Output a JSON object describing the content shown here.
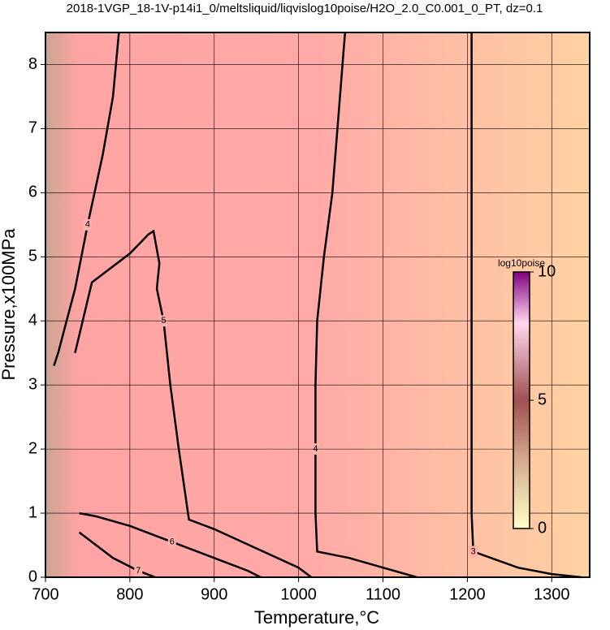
{
  "chart_data": {
    "type": "contour",
    "title": "2018-1VGP_18-1V-p14i1_0/meltsliquid/liqvislog10poise/H2O_2.0_C0.001_0_PT, dz=0.1",
    "x_label": "Temperature,°C",
    "y_label": "Pressure,x100MPa",
    "xlim": [
      700,
      1345
    ],
    "ylim": [
      0,
      8.5
    ],
    "xticks": [
      700,
      800,
      900,
      1000,
      1100,
      1200,
      1300
    ],
    "yticks": [
      0,
      1,
      2,
      3,
      4,
      5,
      6,
      7,
      8
    ],
    "grid": true,
    "colorbar": {
      "label": "log10poise",
      "lim": [
        0,
        10
      ],
      "ticks": [
        0,
        5,
        10
      ]
    },
    "contours": [
      {
        "level": 3,
        "x": [
          1205,
          1205,
          1205,
          1205,
          1207,
          1260,
          1300,
          1335
        ],
        "y": [
          8.5,
          6,
          3,
          1,
          0.4,
          0.15,
          0.05,
          0
        ]
      },
      {
        "level": 4,
        "x": [
          1055,
          1040,
          1030,
          1022,
          1020,
          1020,
          1020,
          1022,
          1060,
          1100,
          1140
        ],
        "y": [
          8.5,
          6,
          5,
          4,
          3,
          2,
          1,
          0.4,
          0.3,
          0.15,
          0
        ]
      },
      {
        "level": 4,
        "x": [
          787,
          780,
          768,
          750,
          735,
          715,
          710
        ],
        "y": [
          8.5,
          7.5,
          6.6,
          5.5,
          4.5,
          3.5,
          3.3
        ]
      },
      {
        "level": 5,
        "x": [
          735,
          755,
          770,
          800,
          822,
          828,
          835,
          832,
          840,
          848,
          858,
          870,
          900,
          950,
          1000,
          1015
        ],
        "y": [
          3.5,
          4.6,
          4.75,
          5.05,
          5.35,
          5.4,
          4.9,
          4.5,
          4,
          3,
          2,
          0.9,
          0.75,
          0.45,
          0.15,
          0
        ]
      },
      {
        "level": 6,
        "x": [
          740,
          760,
          800,
          850,
          900,
          940,
          955
        ],
        "y": [
          1.0,
          0.95,
          0.8,
          0.55,
          0.3,
          0.1,
          0
        ]
      },
      {
        "level": 7,
        "x": [
          740,
          780,
          810,
          830
        ],
        "y": [
          0.7,
          0.3,
          0.1,
          0
        ]
      }
    ]
  }
}
